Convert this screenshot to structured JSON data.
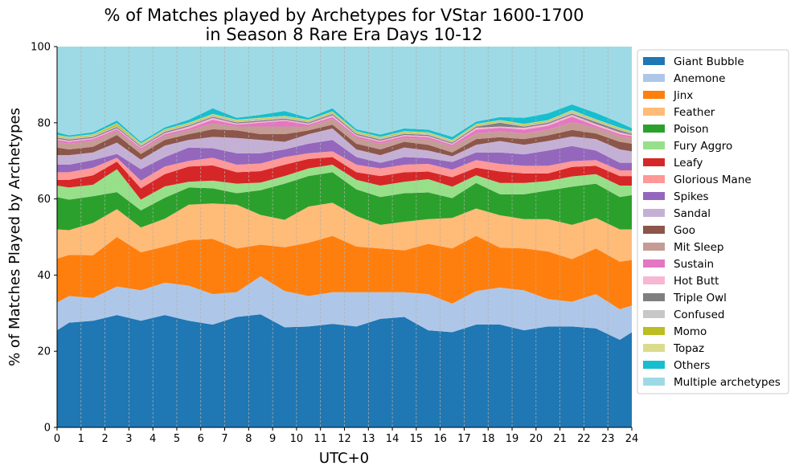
{
  "chart_data": {
    "type": "area",
    "title_lines": [
      "% of Matches played by Archetypes for VStar 1600-1700",
      "in Season 8 Rare Era Days 10-12"
    ],
    "xlabel": "UTC+0",
    "ylabel": "% of Matches Played by Archetypes",
    "xlim": [
      0,
      24
    ],
    "ylim": [
      0,
      100
    ],
    "x_ticks": [
      0,
      1,
      2,
      3,
      4,
      5,
      6,
      7,
      8,
      9,
      10,
      11,
      12,
      13,
      14,
      15,
      16,
      17,
      18,
      19,
      20,
      21,
      22,
      23,
      24
    ],
    "y_ticks": [
      0,
      20,
      40,
      60,
      80,
      100
    ],
    "grid": "vertical dashed",
    "legend_position": "right",
    "stacked": true,
    "x": [
      0,
      0.5,
      1.5,
      2.5,
      3.5,
      4.5,
      5.5,
      6.5,
      7.5,
      8.5,
      9.5,
      10.5,
      11.5,
      12.5,
      13.5,
      14.5,
      15.5,
      16.5,
      17.5,
      18.5,
      19.5,
      20.5,
      21.5,
      22.5,
      23.5,
      24
    ],
    "series": [
      {
        "name": "Giant Bubble",
        "color": "#1f77b4",
        "values": [
          25.5,
          27.5,
          28,
          29.5,
          28,
          29.5,
          28,
          27,
          29,
          29.7,
          26.3,
          26.5,
          27.2,
          26.5,
          28.5,
          29,
          25.5,
          25,
          27,
          27,
          25.5,
          26.5,
          26.5,
          26,
          23,
          25
        ]
      },
      {
        "name": "Anemone",
        "color": "#aec7e8",
        "values": [
          7.3,
          7,
          6,
          7.5,
          8,
          8.5,
          9.2,
          8,
          6.5,
          10,
          9.5,
          8,
          8.3,
          9,
          7,
          6.5,
          9.5,
          7.5,
          8.8,
          9.7,
          10.5,
          7.2,
          6.5,
          9,
          8,
          7
        ]
      },
      {
        "name": "Jinx",
        "color": "#ff7f0e",
        "values": [
          11.5,
          10.8,
          11.2,
          13,
          10,
          9.5,
          12,
          14.5,
          11.5,
          8.3,
          11.5,
          14,
          14.8,
          12,
          11.5,
          11,
          13.2,
          14.5,
          14.5,
          10.5,
          11,
          12.5,
          11.2,
          12,
          12.5,
          12
        ]
      },
      {
        "name": "Feather",
        "color": "#ffbb78",
        "values": [
          7.7,
          6.5,
          8.5,
          7.3,
          6.5,
          7.3,
          9.3,
          9.3,
          11.5,
          7.8,
          7.2,
          9.5,
          8.7,
          8,
          6.2,
          7.5,
          6.5,
          8,
          7.2,
          8.5,
          7.7,
          8.5,
          9,
          8,
          8.5,
          8
        ]
      },
      {
        "name": "Poison",
        "color": "#2ca02c",
        "values": [
          8.5,
          8,
          7,
          4.5,
          4.5,
          5.5,
          4.5,
          4,
          3,
          6.5,
          9.5,
          8,
          8,
          7,
          7.3,
          7.5,
          7,
          5.2,
          6.7,
          5.5,
          6.5,
          7.5,
          10,
          9,
          8.5,
          9
        ]
      },
      {
        "name": "Fury Aggro",
        "color": "#98df8a",
        "values": [
          3,
          3.2,
          3,
          6,
          2.8,
          3,
          1.5,
          2,
          2.5,
          2,
          2,
          2,
          2,
          2.5,
          3,
          3,
          3.5,
          3,
          2,
          3,
          3,
          2.5,
          2.7,
          2.5,
          3,
          2.5
        ]
      },
      {
        "name": "Leafy",
        "color": "#d62728",
        "values": [
          1.5,
          2,
          2.5,
          2,
          3,
          3.2,
          4,
          4,
          3,
          3,
          3,
          2.5,
          2,
          2,
          2.5,
          2.5,
          2,
          2.5,
          2,
          3,
          2.5,
          2,
          2.5,
          2.2,
          2.5,
          2.5
        ]
      },
      {
        "name": "Glorious Mane",
        "color": "#ff9896",
        "values": [
          2,
          2,
          2,
          1,
          2,
          2,
          1.5,
          2,
          2,
          2,
          2,
          1.5,
          1.5,
          2,
          2,
          2,
          2,
          2,
          2,
          2,
          2,
          2,
          1.5,
          1.5,
          1.5,
          1.5
        ]
      },
      {
        "name": "Spikes",
        "color": "#9467bd",
        "values": [
          2,
          2,
          2,
          1,
          3,
          2.5,
          3.5,
          2.5,
          3,
          2.7,
          2,
          2.5,
          3,
          2,
          1.5,
          2,
          1.5,
          2,
          2,
          3,
          3,
          4,
          4,
          2.5,
          2,
          2
        ]
      },
      {
        "name": "Sandal",
        "color": "#c5b0d5",
        "values": [
          2.5,
          2.5,
          2,
          3,
          2.5,
          3,
          2,
          3,
          4,
          3.5,
          2,
          2.5,
          3,
          2,
          2,
          2.5,
          2,
          1.5,
          2,
          3,
          2.5,
          2.5,
          2.5,
          3,
          3.5,
          3
        ]
      },
      {
        "name": "Goo",
        "color": "#8c564b",
        "values": [
          2,
          1.5,
          1.5,
          2,
          1.5,
          1.5,
          1.5,
          2,
          2,
          1.5,
          2,
          1,
          1,
          1.5,
          1.5,
          1.5,
          1.5,
          1,
          1.5,
          1,
          1.5,
          1.5,
          1.7,
          1.5,
          2,
          2
        ]
      },
      {
        "name": "Mit Sleep",
        "color": "#c49c94",
        "values": [
          1.5,
          1.5,
          1.5,
          1,
          1,
          1,
          1,
          1.5,
          1,
          2,
          2,
          1,
          1.5,
          1.5,
          1.5,
          1,
          1.5,
          1.5,
          1.5,
          1.5,
          1.5,
          1.5,
          2,
          1.5,
          1.5,
          1.5
        ]
      },
      {
        "name": "Sustain",
        "color": "#e377c2",
        "values": [
          0.5,
          0.5,
          0.5,
          0.5,
          0.5,
          0.5,
          0.5,
          1,
          0.5,
          1,
          1.5,
          0.5,
          0.5,
          0.5,
          0.5,
          0.5,
          0.5,
          0.5,
          1,
          1,
          1,
          1,
          1.5,
          0.5,
          0.5,
          0.5
        ]
      },
      {
        "name": "Hot Butt",
        "color": "#f7b6d2",
        "values": [
          0.3,
          0.3,
          0.3,
          0.3,
          0.3,
          0.3,
          0.5,
          0.5,
          0.3,
          0.3,
          0.3,
          0.3,
          0.5,
          0.3,
          0.3,
          0.3,
          0.3,
          0.3,
          0.5,
          0.3,
          0.5,
          0.5,
          0.5,
          0.5,
          0.5,
          0.3
        ]
      },
      {
        "name": "Triple Owl",
        "color": "#7f7f7f",
        "values": [
          0.3,
          0.3,
          0.3,
          0.3,
          0.3,
          0.3,
          0.3,
          0.3,
          0.3,
          0.3,
          0.3,
          0.3,
          0.3,
          0.3,
          0.3,
          0.3,
          0.3,
          0.3,
          0.3,
          1,
          0.3,
          0.3,
          0.3,
          0.5,
          0.5,
          0.3
        ]
      },
      {
        "name": "Confused",
        "color": "#c7c7c7",
        "values": [
          0.3,
          0.3,
          0.3,
          0.3,
          0.3,
          0.3,
          0.3,
          0.3,
          0.3,
          0.3,
          0.3,
          0.3,
          0.3,
          0.3,
          0.3,
          0.3,
          0.3,
          0.3,
          0.3,
          0.3,
          0.3,
          0.3,
          0.5,
          0.3,
          0.3,
          0.3
        ]
      },
      {
        "name": "Momo",
        "color": "#bcbd22",
        "values": [
          0.2,
          0.2,
          0.2,
          0.5,
          0.2,
          0.2,
          0.2,
          0.2,
          0.2,
          0.2,
          0.2,
          0.2,
          0.2,
          0.2,
          0.2,
          0.2,
          0.2,
          0.2,
          0.2,
          0.2,
          0.2,
          0.2,
          0.2,
          0.2,
          0.2,
          0.2
        ]
      },
      {
        "name": "Topaz",
        "color": "#dbdb8d",
        "values": [
          0.2,
          0.2,
          0.2,
          0.2,
          0.2,
          0.2,
          0.2,
          0.2,
          0.2,
          0.2,
          0.2,
          0.2,
          0.2,
          0.2,
          0.2,
          0.2,
          0.2,
          0.2,
          0.2,
          0.2,
          0.2,
          0.2,
          0.2,
          0.2,
          0.2,
          0.2
        ]
      },
      {
        "name": "Others",
        "color": "#17becf",
        "values": [
          0.7,
          0.4,
          0.5,
          0.7,
          0.4,
          0.5,
          0.8,
          1.5,
          0.5,
          0.8,
          1.3,
          0.5,
          0.8,
          0.5,
          0.6,
          0.7,
          0.7,
          0.8,
          0.6,
          0.8,
          1.6,
          1.8,
          1.5,
          1.7,
          1.3,
          0.8
        ]
      },
      {
        "name": "Multiple archetypes",
        "color": "#9edae5",
        "values": [
          22.5,
          24.3,
          23.4,
          21.4,
          25.1,
          24.7,
          22.2,
          20.7,
          22,
          20.6,
          18.2,
          19.6,
          19.1,
          22,
          22.2,
          21.3,
          21.4,
          23,
          20.9,
          22.1,
          22.0,
          18.3,
          18,
          20,
          22.9,
          23.4
        ]
      }
    ]
  }
}
